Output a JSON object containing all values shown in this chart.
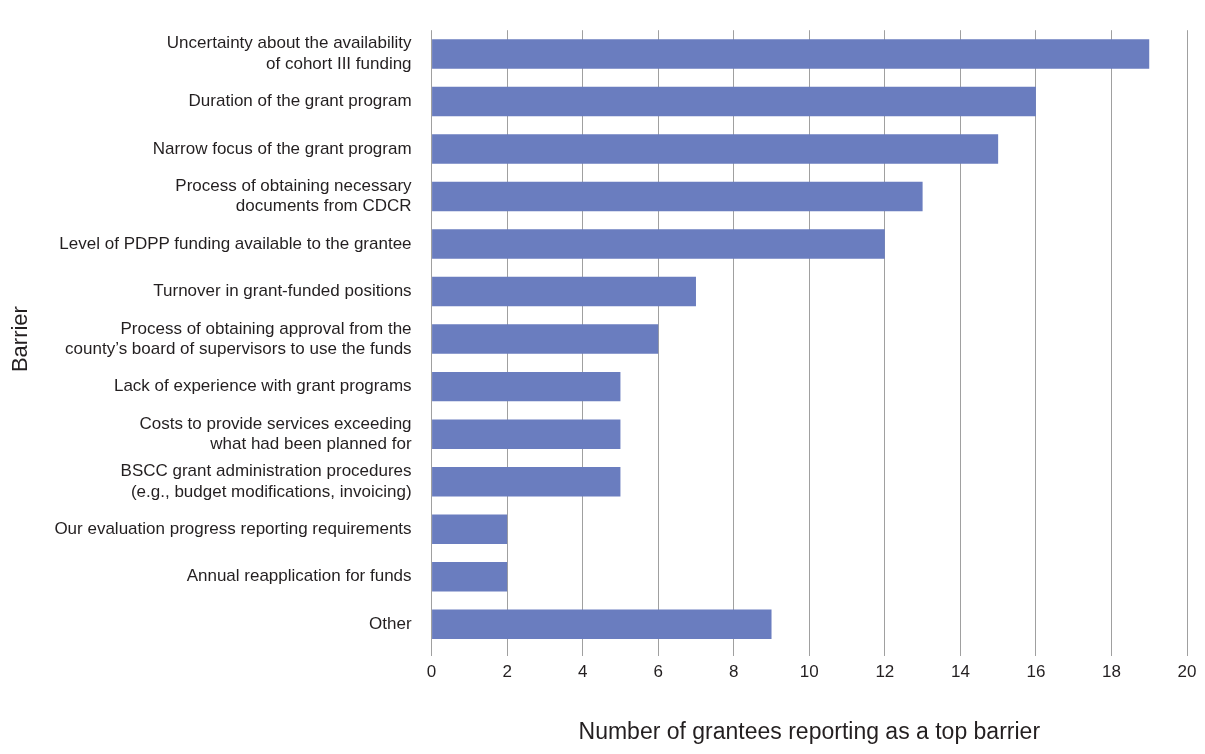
{
  "chart_data": {
    "type": "bar",
    "orientation": "horizontal",
    "xlabel": "Number of grantees reporting as a top barrier",
    "ylabel": "Barrier",
    "categories": [
      "Uncertainty about the availability\nof cohort III funding",
      "Duration of the grant program",
      "Narrow focus of the grant program",
      "Process of obtaining necessary\ndocuments from CDCR",
      "Level of PDPP funding available to the grantee",
      "Turnover in grant-funded positions",
      "Process of obtaining approval from the\ncounty’s board of supervisors to use the funds",
      "Lack of experience with grant programs",
      "Costs to provide services exceeding\nwhat had been planned for",
      "BSCC grant administration procedures\n(e.g., budget modifications, invoicing)",
      "Our evaluation progress reporting requirements",
      "Annual reapplication for funds",
      "Other"
    ],
    "values": [
      19,
      16,
      15,
      13,
      12,
      7,
      6,
      5,
      5,
      5,
      2,
      2,
      9
    ],
    "color": "#6a7dbf",
    "xlim": [
      0,
      20
    ],
    "xticks": [
      0,
      2,
      4,
      6,
      8,
      10,
      12,
      14,
      16,
      18,
      20
    ],
    "grid": "x",
    "legend": false
  }
}
